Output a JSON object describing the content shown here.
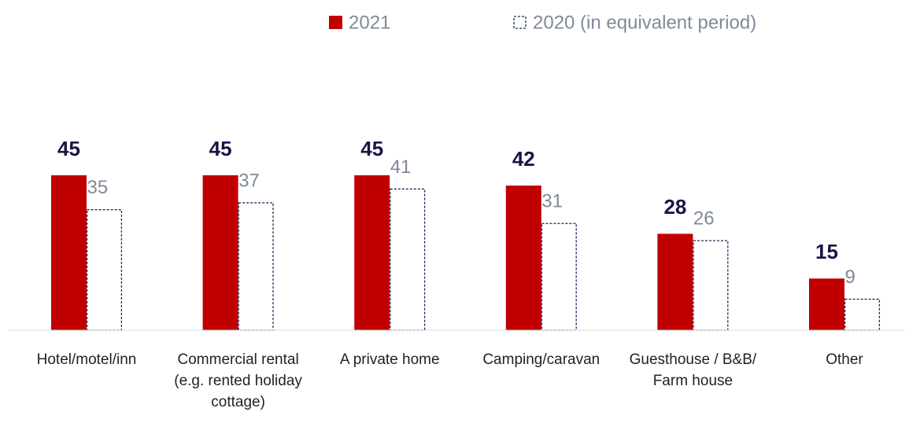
{
  "chart_data": {
    "type": "bar",
    "categories": [
      "Hotel/motel/inn",
      "Commercial rental (e.g. rented holiday cottage)",
      "A private home",
      "Camping/caravan",
      "Guesthouse / B&B/ Farm house",
      "Other"
    ],
    "series": [
      {
        "name": "2021",
        "color": "#c00000",
        "values": [
          45,
          45,
          45,
          42,
          28,
          15
        ]
      },
      {
        "name": "2020 (in equivalent period)",
        "color": "#1f2a5a",
        "values": [
          35,
          37,
          41,
          31,
          26,
          9
        ]
      }
    ]
  }
}
